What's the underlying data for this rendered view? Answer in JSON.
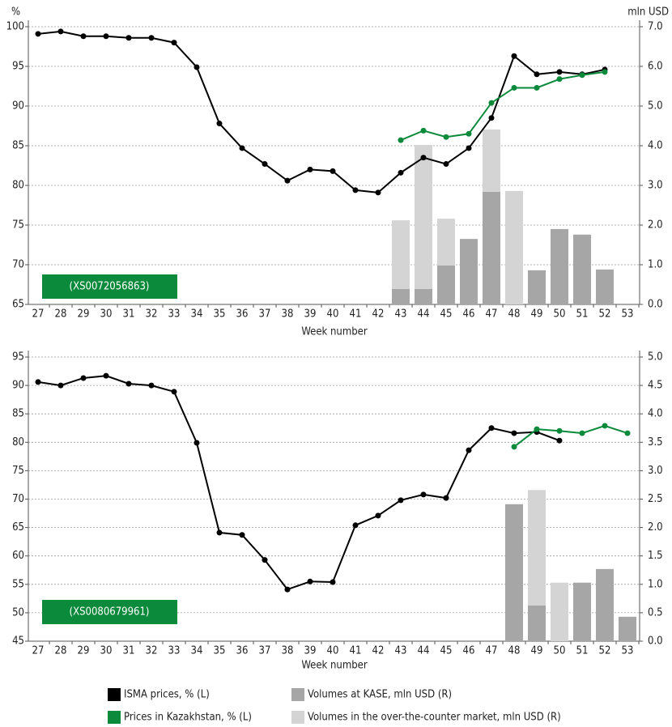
{
  "chart_data": [
    {
      "type": "combo",
      "annotation": "(XS0072056863)",
      "y_label": "%",
      "y2_label": "mln USD",
      "x_label": "Week number",
      "categories": [
        "27",
        "28",
        "29",
        "30",
        "31",
        "32",
        "33",
        "34",
        "35",
        "36",
        "37",
        "38",
        "39",
        "40",
        "41",
        "42",
        "43",
        "44",
        "45",
        "46",
        "47",
        "48",
        "49",
        "50",
        "51",
        "52",
        "53"
      ],
      "ylim": [
        65,
        100
      ],
      "yticks": [
        65,
        70,
        75,
        80,
        85,
        90,
        95,
        100
      ],
      "y2lim": [
        0,
        7
      ],
      "y2ticks": [
        {
          "value": 0,
          "label": "0.0"
        },
        {
          "value": 1,
          "label": "1.0"
        },
        {
          "value": 2,
          "label": "2.0"
        },
        {
          "value": 3,
          "label": "3.0"
        },
        {
          "value": 4,
          "label": "4.0"
        },
        {
          "value": 5,
          "label": "5.0"
        },
        {
          "value": 6,
          "label": "6.0"
        },
        {
          "value": 7,
          "label": "7.0"
        }
      ],
      "grid": true,
      "series": [
        {
          "type": "bar",
          "axis": "y2",
          "color": "#a6a6a6",
          "values": [
            null,
            null,
            null,
            null,
            null,
            null,
            null,
            null,
            null,
            null,
            null,
            null,
            null,
            null,
            null,
            null,
            0.39,
            0.39,
            0.98,
            1.65,
            2.84,
            null,
            0.86,
            1.9,
            1.76,
            0.88,
            null
          ]
        },
        {
          "type": "bar",
          "axis": "y2",
          "color": "#d4d4d4",
          "values": [
            null,
            null,
            null,
            null,
            null,
            null,
            null,
            null,
            null,
            null,
            null,
            null,
            null,
            null,
            null,
            null,
            1.73,
            3.63,
            1.18,
            null,
            1.57,
            2.86,
            null,
            null,
            null,
            null,
            null
          ]
        },
        {
          "type": "line",
          "axis": "y",
          "color": "#000000",
          "values": [
            99.1,
            99.4,
            98.8,
            98.8,
            98.6,
            98.6,
            98.0,
            94.9,
            87.8,
            84.7,
            82.7,
            80.6,
            82.0,
            81.8,
            79.4,
            79.1,
            81.6,
            83.5,
            82.7,
            84.7,
            88.5,
            96.3,
            94.0,
            94.3,
            94.0,
            94.6,
            null
          ]
        },
        {
          "type": "line",
          "axis": "y",
          "color": "#0a8a3a",
          "values": [
            null,
            null,
            null,
            null,
            null,
            null,
            null,
            null,
            null,
            null,
            null,
            null,
            null,
            null,
            null,
            null,
            85.7,
            86.9,
            86.1,
            86.5,
            90.4,
            92.3,
            92.3,
            93.4,
            93.9,
            94.3,
            null
          ]
        }
      ]
    },
    {
      "type": "combo",
      "annotation": "(XS0080679961)",
      "x_label": "Week number",
      "categories": [
        "27",
        "28",
        "29",
        "30",
        "31",
        "32",
        "33",
        "34",
        "35",
        "36",
        "37",
        "38",
        "39",
        "40",
        "41",
        "42",
        "43",
        "44",
        "45",
        "46",
        "47",
        "48",
        "49",
        "50",
        "51",
        "52",
        "53"
      ],
      "ylim": [
        45,
        95
      ],
      "yticks": [
        45,
        50,
        55,
        60,
        65,
        70,
        75,
        80,
        85,
        90,
        95
      ],
      "y2lim": [
        0,
        5
      ],
      "y2ticks": [
        {
          "value": 0,
          "label": "0.0"
        },
        {
          "value": 0.5,
          "label": "0.5"
        },
        {
          "value": 1,
          "label": "1.0"
        },
        {
          "value": 1.5,
          "label": "1.5"
        },
        {
          "value": 2,
          "label": "2.0"
        },
        {
          "value": 2.5,
          "label": "2.5"
        },
        {
          "value": 3,
          "label": "3.0"
        },
        {
          "value": 3.5,
          "label": "3.5"
        },
        {
          "value": 4,
          "label": "4.0"
        },
        {
          "value": 4.5,
          "label": "4.5"
        },
        {
          "value": 5,
          "label": "5.0"
        }
      ],
      "grid": true,
      "series": [
        {
          "type": "bar",
          "axis": "y2",
          "color": "#a6a6a6",
          "values": [
            null,
            null,
            null,
            null,
            null,
            null,
            null,
            null,
            null,
            null,
            null,
            null,
            null,
            null,
            null,
            null,
            null,
            null,
            null,
            null,
            null,
            2.41,
            0.63,
            null,
            1.03,
            1.27,
            0.43
          ]
        },
        {
          "type": "bar",
          "axis": "y2",
          "color": "#d4d4d4",
          "values": [
            null,
            null,
            null,
            null,
            null,
            null,
            null,
            null,
            null,
            null,
            null,
            null,
            null,
            null,
            null,
            null,
            null,
            null,
            null,
            null,
            null,
            null,
            2.03,
            1.03,
            null,
            null,
            null
          ]
        },
        {
          "type": "line",
          "axis": "y",
          "color": "#000000",
          "values": [
            90.6,
            90.0,
            91.3,
            91.7,
            90.3,
            90.0,
            88.9,
            79.9,
            64.1,
            63.7,
            59.3,
            54.1,
            55.5,
            55.4,
            65.4,
            67.1,
            69.8,
            70.8,
            70.2,
            78.6,
            82.5,
            81.6,
            81.8,
            80.3,
            null,
            null,
            null
          ]
        },
        {
          "type": "line",
          "axis": "y",
          "color": "#0a8a3a",
          "values": [
            null,
            null,
            null,
            null,
            null,
            null,
            null,
            null,
            null,
            null,
            null,
            null,
            null,
            null,
            null,
            null,
            null,
            null,
            null,
            null,
            null,
            79.2,
            82.3,
            82.0,
            81.6,
            82.9,
            81.6
          ]
        }
      ]
    }
  ],
  "legend": [
    {
      "name": "ISMA prices, % (L)",
      "color": "#000000"
    },
    {
      "name": "Prices in Kazakhstan, % (L)",
      "color": "#0a8a3a"
    },
    {
      "name": "Volumes at KASE, mln USD (R)",
      "color": "#a6a6a6"
    },
    {
      "name": "Volumes in the over-the-counter market, mln USD (R)",
      "color": "#d4d4d4"
    }
  ]
}
